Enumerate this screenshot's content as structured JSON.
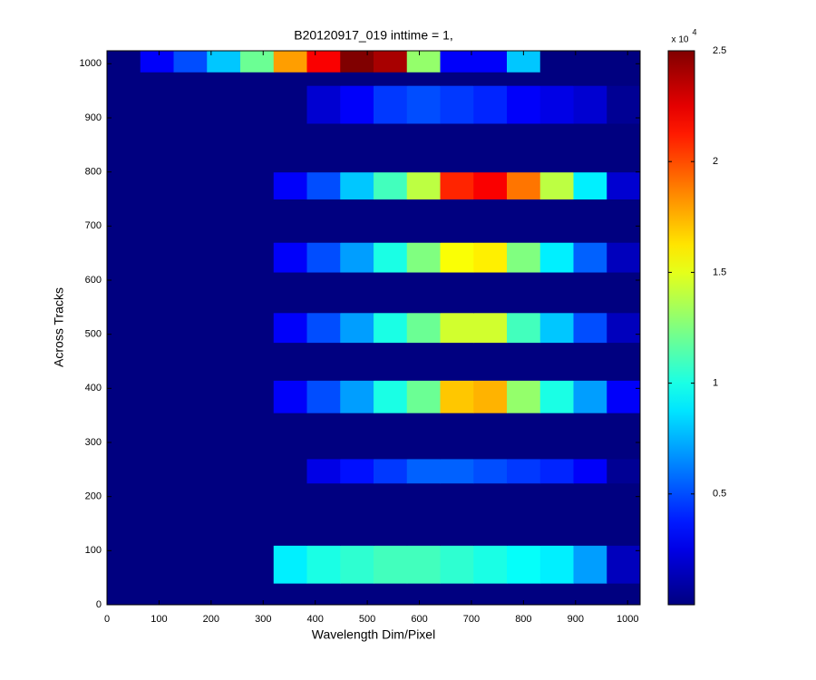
{
  "chart_data": {
    "type": "heatmap",
    "title": "B20120917_019 inttime = 1,",
    "x_label": "Wavelength Dim/Pixel",
    "y_label": "Across Tracks",
    "xlim": [
      0,
      1024
    ],
    "ylim": [
      0,
      1024
    ],
    "xticks": [
      0,
      100,
      200,
      300,
      400,
      500,
      600,
      700,
      800,
      900,
      1000
    ],
    "yticks": [
      0,
      100,
      200,
      300,
      400,
      500,
      600,
      700,
      800,
      900,
      1000
    ],
    "xbins": [
      0,
      64,
      128,
      192,
      256,
      320,
      384,
      448,
      512,
      576,
      640,
      704,
      768,
      832,
      896,
      960,
      1024
    ],
    "ybins": [
      0,
      40,
      110,
      225,
      270,
      355,
      415,
      485,
      540,
      615,
      670,
      750,
      800,
      890,
      960,
      985,
      1024
    ],
    "values": [
      [
        0,
        0,
        0,
        0,
        0,
        0,
        0,
        0,
        0,
        0,
        0,
        0,
        0,
        0,
        0,
        0
      ],
      [
        0,
        0,
        0,
        0,
        0,
        9000,
        10000,
        10500,
        11000,
        11000,
        10500,
        10000,
        9500,
        9000,
        7000,
        1500
      ],
      [
        0,
        0,
        0,
        0,
        0,
        0,
        0,
        0,
        0,
        0,
        0,
        0,
        0,
        0,
        0,
        0
      ],
      [
        0,
        0,
        0,
        0,
        0,
        0,
        2500,
        3500,
        4500,
        5500,
        5500,
        5000,
        4500,
        4000,
        3000,
        500
      ],
      [
        0,
        0,
        0,
        0,
        0,
        0,
        0,
        0,
        0,
        0,
        0,
        0,
        0,
        0,
        0,
        0
      ],
      [
        0,
        0,
        0,
        0,
        0,
        3000,
        5000,
        7000,
        10000,
        12000,
        17000,
        17500,
        13000,
        10000,
        7000,
        3000
      ],
      [
        0,
        0,
        0,
        0,
        0,
        0,
        0,
        0,
        0,
        0,
        0,
        0,
        0,
        0,
        0,
        0
      ],
      [
        0,
        0,
        0,
        0,
        0,
        3000,
        5000,
        7000,
        10000,
        12000,
        14500,
        14500,
        11000,
        8000,
        5000,
        1500
      ],
      [
        0,
        0,
        0,
        0,
        0,
        0,
        0,
        0,
        0,
        0,
        0,
        0,
        0,
        0,
        0,
        0
      ],
      [
        0,
        0,
        0,
        0,
        0,
        3000,
        5000,
        7000,
        10000,
        12500,
        15500,
        16000,
        12500,
        9000,
        5500,
        1500
      ],
      [
        0,
        0,
        0,
        0,
        0,
        0,
        0,
        0,
        0,
        0,
        0,
        0,
        0,
        0,
        0,
        0
      ],
      [
        0,
        0,
        0,
        0,
        0,
        3000,
        5000,
        8000,
        11000,
        14000,
        21000,
        22000,
        19000,
        14000,
        9000,
        2000
      ],
      [
        0,
        0,
        0,
        0,
        0,
        0,
        0,
        0,
        0,
        0,
        0,
        0,
        0,
        0,
        0,
        0
      ],
      [
        0,
        0,
        0,
        0,
        0,
        0,
        2000,
        3000,
        4500,
        5000,
        4500,
        4000,
        3000,
        2500,
        2000,
        500
      ],
      [
        0,
        0,
        0,
        0,
        0,
        0,
        0,
        0,
        0,
        0,
        0,
        0,
        0,
        0,
        0,
        0
      ],
      [
        0,
        3000,
        5000,
        8000,
        12000,
        18000,
        22000,
        25000,
        24000,
        13000,
        3000,
        3000,
        8000,
        0,
        0,
        0
      ]
    ],
    "colormap": "jet",
    "clim": [
      0,
      25000
    ],
    "cticks": [
      {
        "value": 5000,
        "label": "0.5"
      },
      {
        "value": 10000,
        "label": "1"
      },
      {
        "value": 15000,
        "label": "1.5"
      },
      {
        "value": 20000,
        "label": "2"
      },
      {
        "value": 25000,
        "label": "2.5"
      }
    ],
    "colorbar_multiplier": "x 10",
    "colorbar_power": "4"
  }
}
